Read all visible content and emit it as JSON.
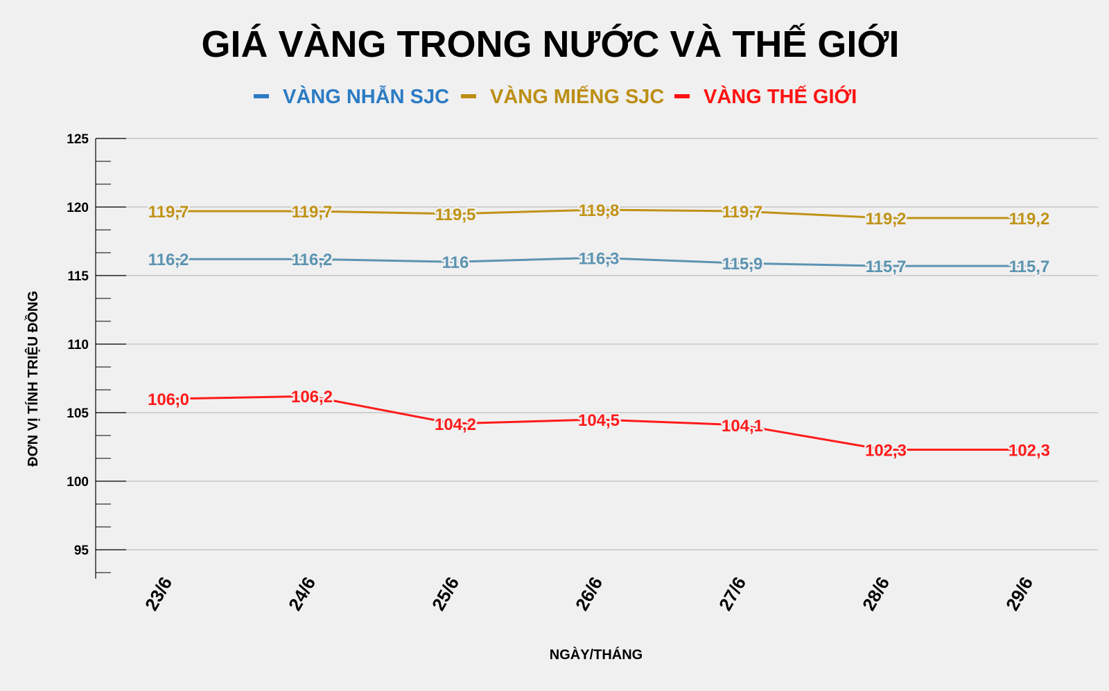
{
  "chart_data": {
    "type": "line",
    "title": "GIÁ VÀNG TRONG NƯỚC VÀ THẾ GIỚI",
    "xlabel": "NGÀY/THÁNG",
    "ylabel": "ĐƠN VỊ TÍNH TRIỆU ĐỒNG",
    "categories": [
      "23/6",
      "24/6",
      "25/6",
      "26/6",
      "27/6",
      "28/6",
      "29/6"
    ],
    "ylim": [
      93,
      125
    ],
    "yticks": [
      95,
      100,
      105,
      110,
      115,
      120,
      125
    ],
    "grid": true,
    "legend_position": "top-center",
    "series": [
      {
        "name": "VÀNG NHẪN SJC",
        "color": "#5b93b1",
        "legend_color": "#2b7bc4",
        "values": [
          116.2,
          116.2,
          116.0,
          116.3,
          115.9,
          115.7,
          115.7
        ],
        "labels": [
          "116,2",
          "116,2",
          "116",
          "116,3",
          "115,9",
          "115,7",
          "115,7"
        ]
      },
      {
        "name": "VÀNG MIẾNG SJC",
        "color": "#c09216",
        "legend_color": "#bc8e14",
        "values": [
          119.7,
          119.7,
          119.5,
          119.8,
          119.7,
          119.2,
          119.2
        ],
        "labels": [
          "119,7",
          "119,7",
          "119,5",
          "119,8",
          "119,7",
          "119,2",
          "119,2"
        ]
      },
      {
        "name": "VÀNG THẾ GIỚI",
        "color": "#ff1a1a",
        "legend_color": "#ff1111",
        "values": [
          106.0,
          106.2,
          104.2,
          104.5,
          104.1,
          102.3,
          102.3
        ],
        "labels": [
          "106,0",
          "106,2",
          "104,2",
          "104,5",
          "104,1",
          "102,3",
          "102,3"
        ]
      }
    ]
  }
}
